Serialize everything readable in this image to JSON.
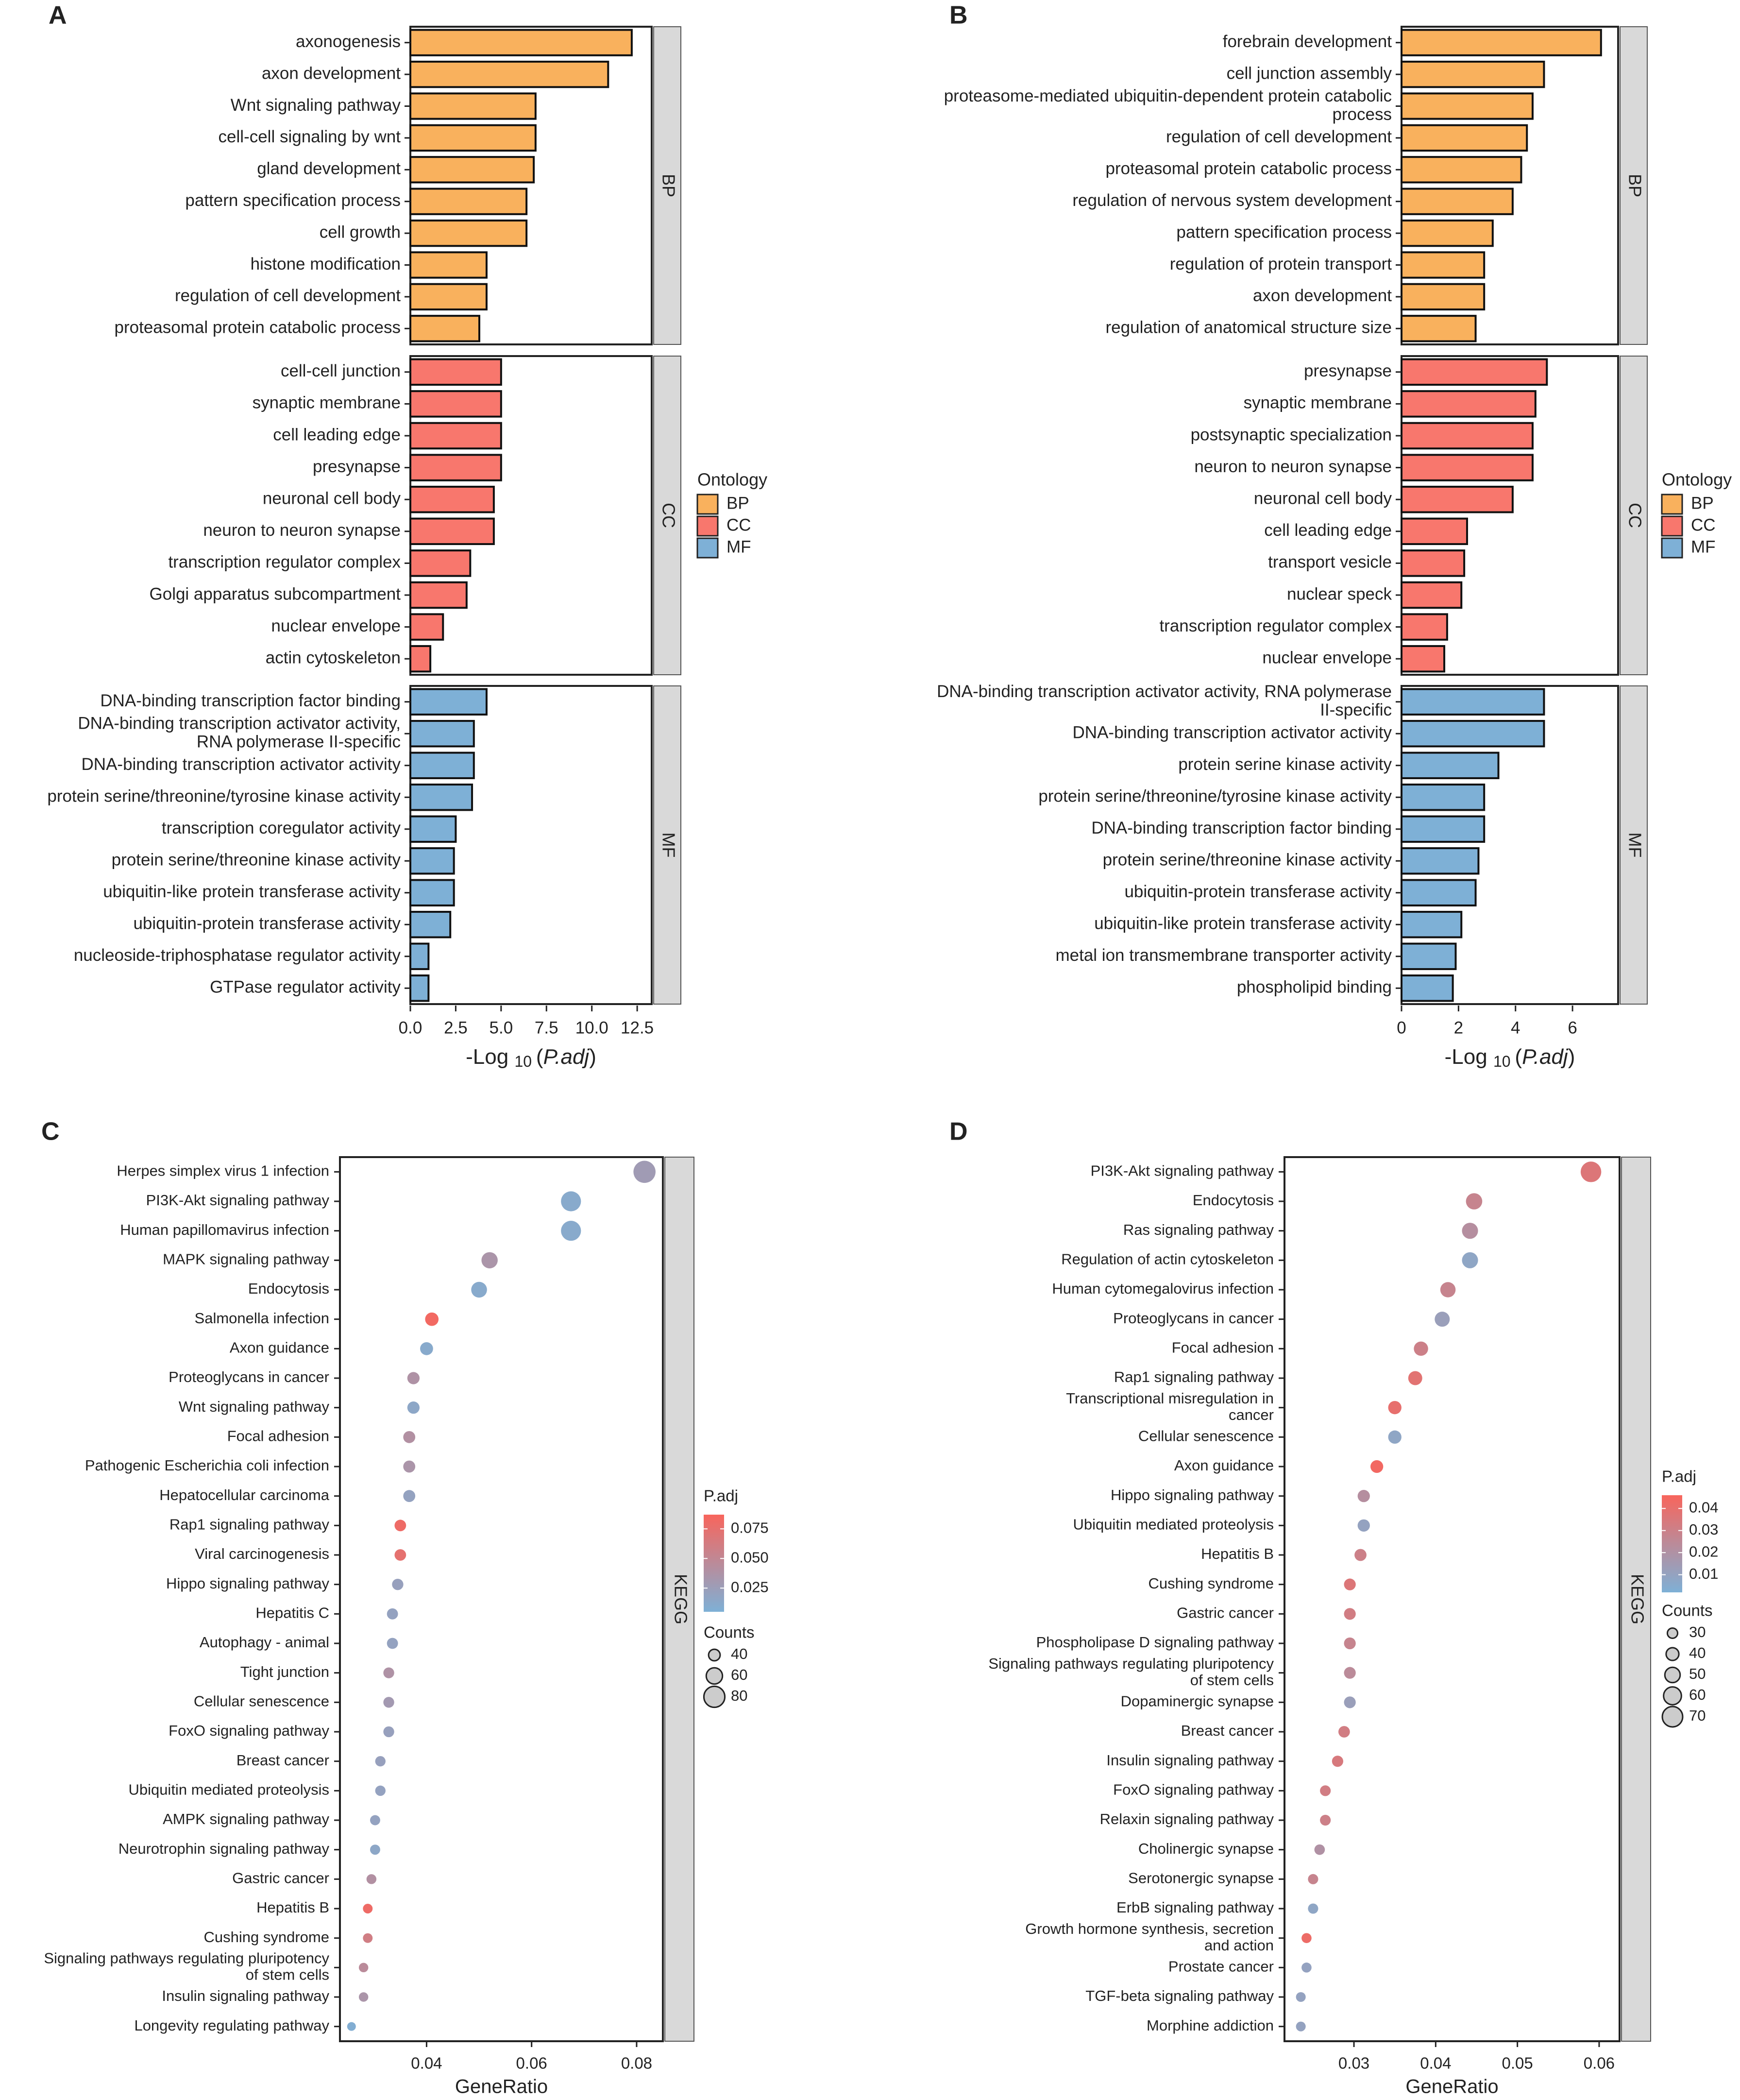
{
  "panels": {
    "A": {
      "label": "A"
    },
    "B": {
      "label": "B"
    },
    "C": {
      "label": "C"
    },
    "D": {
      "label": "D"
    }
  },
  "colors": {
    "BP": "#F9B15D",
    "CC": "#F8776D",
    "MF": "#7EB0D6",
    "padj_low": "#7EB0D6",
    "padj_high": "#F8655C",
    "strip": "#d9d9d9"
  },
  "chart_data": [
    {
      "panel": "A",
      "type": "bar",
      "orientation": "horizontal",
      "xlabel": "-Log 10 (P.adj)",
      "xlim": [
        0,
        13.3
      ],
      "xticks": [
        0.0,
        2.5,
        5.0,
        7.5,
        10.0,
        12.5
      ],
      "xtick_labels": [
        "0.0",
        "2.5",
        "5.0",
        "7.5",
        "10.0",
        "12.5"
      ],
      "legend": {
        "title": "Ontology",
        "entries": [
          "BP",
          "CC",
          "MF"
        ]
      },
      "groups": [
        {
          "name": "BP",
          "categories": [
            "axonogenesis",
            "axon development",
            "Wnt signaling pathway",
            "cell-cell signaling by wnt",
            "gland development",
            "pattern specification process",
            "cell growth",
            "histone modification",
            "regulation of cell development",
            "proteasomal protein catabolic process"
          ],
          "values": [
            12.2,
            10.9,
            6.9,
            6.9,
            6.8,
            6.4,
            6.4,
            4.2,
            4.2,
            3.8
          ]
        },
        {
          "name": "CC",
          "categories": [
            "cell-cell junction",
            "synaptic membrane",
            "cell leading edge",
            "presynapse",
            "neuronal cell body",
            "neuron to neuron synapse",
            "transcription regulator complex",
            "Golgi apparatus subcompartment",
            "nuclear envelope",
            "actin cytoskeleton"
          ],
          "values": [
            5.0,
            5.0,
            5.0,
            5.0,
            4.6,
            4.6,
            3.3,
            3.1,
            1.8,
            1.1
          ]
        },
        {
          "name": "MF",
          "categories": [
            "DNA-binding transcription factor binding",
            "DNA-binding transcription activator activity,\nRNA polymerase II-specific",
            "DNA-binding transcription activator activity",
            "protein serine/threonine/tyrosine kinase activity",
            "transcription coregulator activity",
            "protein serine/threonine kinase activity",
            "ubiquitin-like protein transferase activity",
            "ubiquitin-protein transferase activity",
            "nucleoside-triphosphatase regulator activity",
            "GTPase regulator activity"
          ],
          "values": [
            4.2,
            3.5,
            3.5,
            3.4,
            2.5,
            2.4,
            2.4,
            2.2,
            1.0,
            1.0
          ]
        }
      ]
    },
    {
      "panel": "B",
      "type": "bar",
      "orientation": "horizontal",
      "xlabel": "-Log 10 (P.adj)",
      "xlim": [
        0,
        7.6
      ],
      "xticks": [
        0,
        2,
        4,
        6
      ],
      "xtick_labels": [
        "0",
        "2",
        "4",
        "6"
      ],
      "legend": {
        "title": "Ontology",
        "entries": [
          "BP",
          "CC",
          "MF"
        ]
      },
      "groups": [
        {
          "name": "BP",
          "categories": [
            "forebrain development",
            "cell junction assembly",
            "proteasome-mediated ubiquitin-dependent protein catabolic\nprocess",
            "regulation of cell development",
            "proteasomal protein catabolic process",
            "regulation of nervous system development",
            "pattern specification process",
            "regulation of protein transport",
            "axon development",
            "regulation of anatomical structure size"
          ],
          "values": [
            7.0,
            5.0,
            4.6,
            4.4,
            4.2,
            3.9,
            3.2,
            2.9,
            2.9,
            2.6
          ]
        },
        {
          "name": "CC",
          "categories": [
            "presynapse",
            "synaptic membrane",
            "postsynaptic specialization",
            "neuron to neuron synapse",
            "neuronal cell body",
            "cell leading edge",
            "transport vesicle",
            "nuclear speck",
            "transcription regulator complex",
            "nuclear envelope"
          ],
          "values": [
            5.1,
            4.7,
            4.6,
            4.6,
            3.9,
            2.3,
            2.2,
            2.1,
            1.6,
            1.5
          ]
        },
        {
          "name": "MF",
          "categories": [
            "DNA-binding transcription activator activity, RNA polymerase\nII-specific",
            "DNA-binding transcription activator activity",
            "protein serine kinase activity",
            "protein serine/threonine/tyrosine kinase activity",
            "DNA-binding transcription factor binding",
            "protein serine/threonine kinase activity",
            "ubiquitin-protein transferase activity",
            "ubiquitin-like protein transferase activity",
            "metal ion transmembrane transporter activity",
            "phospholipid binding"
          ],
          "values": [
            5.0,
            5.0,
            3.4,
            2.9,
            2.9,
            2.7,
            2.6,
            2.1,
            1.9,
            1.8
          ]
        }
      ]
    },
    {
      "panel": "C",
      "type": "scatter",
      "subtype": "dotplot",
      "facet": "KEGG",
      "xlabel": "GeneRatio",
      "xlim": [
        0.0235,
        0.085
      ],
      "xticks": [
        0.04,
        0.06,
        0.08
      ],
      "xtick_labels": [
        "0.04",
        "0.06",
        "0.08"
      ],
      "color_legend": {
        "title": "P.adj",
        "range": [
          0.005,
          0.087
        ],
        "ticks": [
          0.025,
          0.05,
          0.075
        ],
        "tick_labels": [
          "0.025",
          "0.050",
          "0.075"
        ]
      },
      "size_legend": {
        "title": "Counts",
        "range": [
          28,
          90
        ],
        "values": [
          40,
          60,
          80
        ],
        "labels": [
          "40",
          "60",
          "80"
        ]
      },
      "categories": [
        "Herpes simplex virus 1 infection",
        "PI3K-Akt signaling pathway",
        "Human papillomavirus infection",
        "MAPK signaling pathway",
        "Endocytosis",
        "Salmonella infection",
        "Axon guidance",
        "Proteoglycans in cancer",
        "Wnt signaling pathway",
        "Focal adhesion",
        "Pathogenic Escherichia coli infection",
        "Hepatocellular carcinoma",
        "Rap1 signaling pathway",
        "Viral carcinogenesis",
        "Hippo signaling pathway",
        "Hepatitis C",
        "Autophagy - animal",
        "Tight junction",
        "Cellular senescence",
        "FoxO signaling pathway",
        "Breast cancer",
        "Ubiquitin mediated proteolysis",
        "AMPK signaling pathway",
        "Neurotrophin signaling pathway",
        "Gastric cancer",
        "Hepatitis B",
        "Cushing syndrome",
        "Signaling pathways regulating pluripotency\nof stem cells",
        "Insulin signaling pathway",
        "Longevity regulating pathway"
      ],
      "x": [
        0.0815,
        0.0675,
        0.0675,
        0.052,
        0.05,
        0.041,
        0.04,
        0.0375,
        0.0375,
        0.0367,
        0.0367,
        0.0367,
        0.035,
        0.035,
        0.0345,
        0.0335,
        0.0335,
        0.0328,
        0.0328,
        0.0328,
        0.0312,
        0.0312,
        0.0302,
        0.0302,
        0.0295,
        0.0288,
        0.0288,
        0.028,
        0.028,
        0.0257
      ],
      "counts": [
        85,
        76,
        76,
        60,
        58,
        48,
        46,
        43,
        43,
        42,
        42,
        42,
        40,
        40,
        39,
        38,
        38,
        37,
        37,
        37,
        35,
        35,
        34,
        34,
        33,
        32,
        32,
        31,
        31,
        28
      ],
      "p_adj": [
        0.028,
        0.012,
        0.012,
        0.035,
        0.012,
        0.083,
        0.012,
        0.038,
        0.015,
        0.04,
        0.035,
        0.02,
        0.08,
        0.074,
        0.022,
        0.02,
        0.02,
        0.038,
        0.03,
        0.022,
        0.022,
        0.02,
        0.02,
        0.015,
        0.04,
        0.08,
        0.06,
        0.045,
        0.035,
        0.008
      ]
    },
    {
      "panel": "D",
      "type": "scatter",
      "subtype": "dotplot",
      "facet": "KEGG",
      "xlabel": "GeneRatio",
      "xlim": [
        0.0215,
        0.0625
      ],
      "xticks": [
        0.03,
        0.04,
        0.05,
        0.06
      ],
      "xtick_labels": [
        "0.03",
        "0.04",
        "0.05",
        "0.06"
      ],
      "color_legend": {
        "title": "P.adj",
        "range": [
          0.002,
          0.046
        ],
        "ticks": [
          0.01,
          0.02,
          0.03,
          0.04
        ],
        "tick_labels": [
          "0.01",
          "0.02",
          "0.03",
          "0.04"
        ]
      },
      "size_legend": {
        "title": "Counts",
        "range": [
          24,
          74
        ],
        "values": [
          30,
          40,
          50,
          60,
          70
        ],
        "labels": [
          "30",
          "40",
          "50",
          "60",
          "70"
        ]
      },
      "categories": [
        "PI3K-Akt signaling pathway",
        "Endocytosis",
        "Ras signaling pathway",
        "Regulation of actin cytoskeleton",
        "Human cytomegalovirus infection",
        "Proteoglycans in cancer",
        "Focal adhesion",
        "Rap1 signaling pathway",
        "Transcriptional misregulation in\ncancer",
        "Cellular senescence",
        "Axon guidance",
        "Hippo signaling pathway",
        "Ubiquitin mediated proteolysis",
        "Hepatitis B",
        "Cushing syndrome",
        "Gastric cancer",
        "Phospholipase D signaling pathway",
        "Signaling pathways regulating pluripotency\nof stem cells",
        "Dopaminergic synapse",
        "Breast cancer",
        "Insulin signaling pathway",
        "FoxO signaling pathway",
        "Relaxin signaling pathway",
        "Cholinergic synapse",
        "Serotonergic synapse",
        "ErbB signaling pathway",
        "Growth hormone synthesis, secretion\nand action",
        "Prostate cancer",
        "TGF-beta signaling pathway",
        "Morphine addiction"
      ],
      "x": [
        0.059,
        0.0447,
        0.0442,
        0.0442,
        0.0415,
        0.0408,
        0.0382,
        0.0375,
        0.035,
        0.035,
        0.0328,
        0.0312,
        0.0312,
        0.0308,
        0.0295,
        0.0295,
        0.0295,
        0.0295,
        0.0295,
        0.0288,
        0.028,
        0.0265,
        0.0265,
        0.0258,
        0.025,
        0.025,
        0.0242,
        0.0242,
        0.0235,
        0.0235
      ],
      "counts": [
        71,
        54,
        53,
        53,
        50,
        49,
        46,
        45,
        42,
        42,
        40,
        38,
        38,
        37,
        36,
        36,
        36,
        36,
        36,
        35,
        34,
        32,
        32,
        31,
        30,
        30,
        29,
        29,
        28,
        28
      ],
      "p_adj": [
        0.036,
        0.028,
        0.022,
        0.008,
        0.028,
        0.012,
        0.03,
        0.038,
        0.04,
        0.008,
        0.044,
        0.022,
        0.01,
        0.03,
        0.036,
        0.032,
        0.028,
        0.024,
        0.012,
        0.032,
        0.034,
        0.032,
        0.03,
        0.02,
        0.028,
        0.008,
        0.042,
        0.01,
        0.01,
        0.01
      ]
    }
  ]
}
